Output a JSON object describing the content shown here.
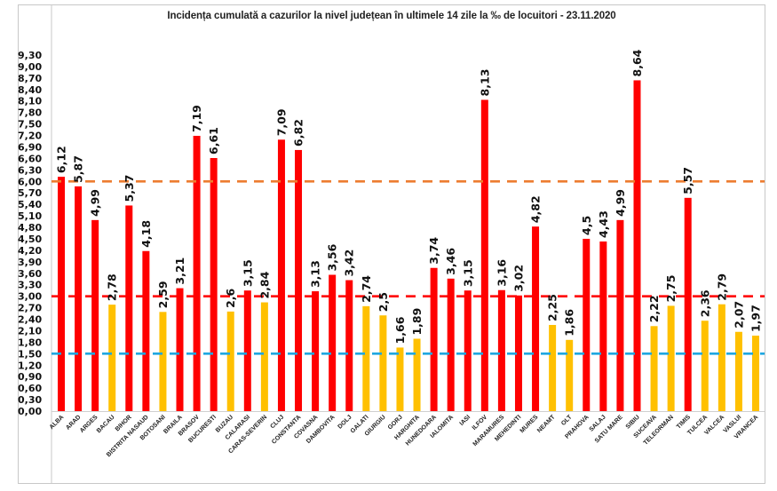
{
  "chart_data": {
    "type": "bar",
    "title": "Incidența cumulată a cazurilor la nivel județean în ultimele 14 zile la ‰ de locuitori - 23.11.2020",
    "xlabel": "",
    "ylabel": "",
    "ylim": [
      0,
      9.3
    ],
    "yticks": [
      "0,00",
      "0,30",
      "0,60",
      "0,90",
      "1,20",
      "1,50",
      "1,80",
      "2,10",
      "2,40",
      "2,70",
      "3,00",
      "3,30",
      "3,60",
      "3,90",
      "4,20",
      "4,50",
      "4,80",
      "5,10",
      "5,40",
      "5,70",
      "6,00",
      "6,30",
      "6,60",
      "6,90",
      "7,20",
      "7,50",
      "7,80",
      "8,10",
      "8,40",
      "8,70",
      "9,00",
      "9,30"
    ],
    "grid": false,
    "legend": "none",
    "categories": [
      "ALBA",
      "ARAD",
      "ARGES",
      "BACAU",
      "BIHOR",
      "BISTRITA NASAUD",
      "BOTOSANI",
      "BRAILA",
      "BRASOV",
      "BUCURESTI",
      "BUZAU",
      "CALARASI",
      "CARAS-SEVERIN",
      "CLUJ",
      "CONSTANTA",
      "COVASNA",
      "DAMBOVITA",
      "DOLJ",
      "GALATI",
      "GIURGIU",
      "GORJ",
      "HARGHITA",
      "HUNEDOARA",
      "IALOMITA",
      "IASI",
      "ILFOV",
      "MARAMURES",
      "MEHEDINTI",
      "MURES",
      "NEAMT",
      "OLT",
      "PRAHOVA",
      "SALAJ",
      "SATU MARE",
      "SIBIU",
      "SUCEAVA",
      "TELEORMAN",
      "TIMIS",
      "TULCEA",
      "VALCEA",
      "VASLUI",
      "VRANCEA"
    ],
    "values": [
      6.12,
      5.87,
      4.99,
      2.78,
      5.37,
      4.18,
      2.59,
      3.21,
      7.19,
      6.61,
      2.6,
      3.15,
      2.84,
      7.09,
      6.82,
      3.13,
      3.56,
      3.42,
      2.74,
      2.5,
      1.66,
      1.89,
      3.74,
      3.46,
      3.15,
      8.13,
      3.16,
      3.02,
      4.82,
      2.25,
      1.86,
      4.5,
      4.43,
      4.99,
      8.64,
      2.22,
      2.75,
      5.57,
      2.36,
      2.79,
      2.07,
      1.97
    ],
    "data_labels": [
      "6,12",
      "5,87",
      "4,99",
      "2,78",
      "5,37",
      "4,18",
      "2,59",
      "3,21",
      "7,19",
      "6,61",
      "2,6",
      "3,15",
      "2,84",
      "7,09",
      "6,82",
      "3,13",
      "3,56",
      "3,42",
      "2,74",
      "2,5",
      "1,66",
      "1,89",
      "3,74",
      "3,46",
      "3,15",
      "8,13",
      "3,16",
      "3,02",
      "4,82",
      "2,25",
      "1,86",
      "4,5",
      "4,43",
      "4,99",
      "8,64",
      "2,22",
      "2,75",
      "5,57",
      "2,36",
      "2,79",
      "2,07",
      "1,97"
    ],
    "color_rule": "red when value >= 3.00, yellow when value < 3.00",
    "bar_colors": {
      "high": "#ff0000",
      "low": "#ffc000"
    },
    "reference_lines": [
      {
        "name": "threshold-6",
        "value": 6.0,
        "color": "#ed7d31",
        "style": "dashed"
      },
      {
        "name": "threshold-3",
        "value": 3.0,
        "color": "#ff0000",
        "style": "dashed"
      },
      {
        "name": "threshold-1-5",
        "value": 1.5,
        "color": "#1fa7e0",
        "style": "dashed"
      }
    ]
  }
}
